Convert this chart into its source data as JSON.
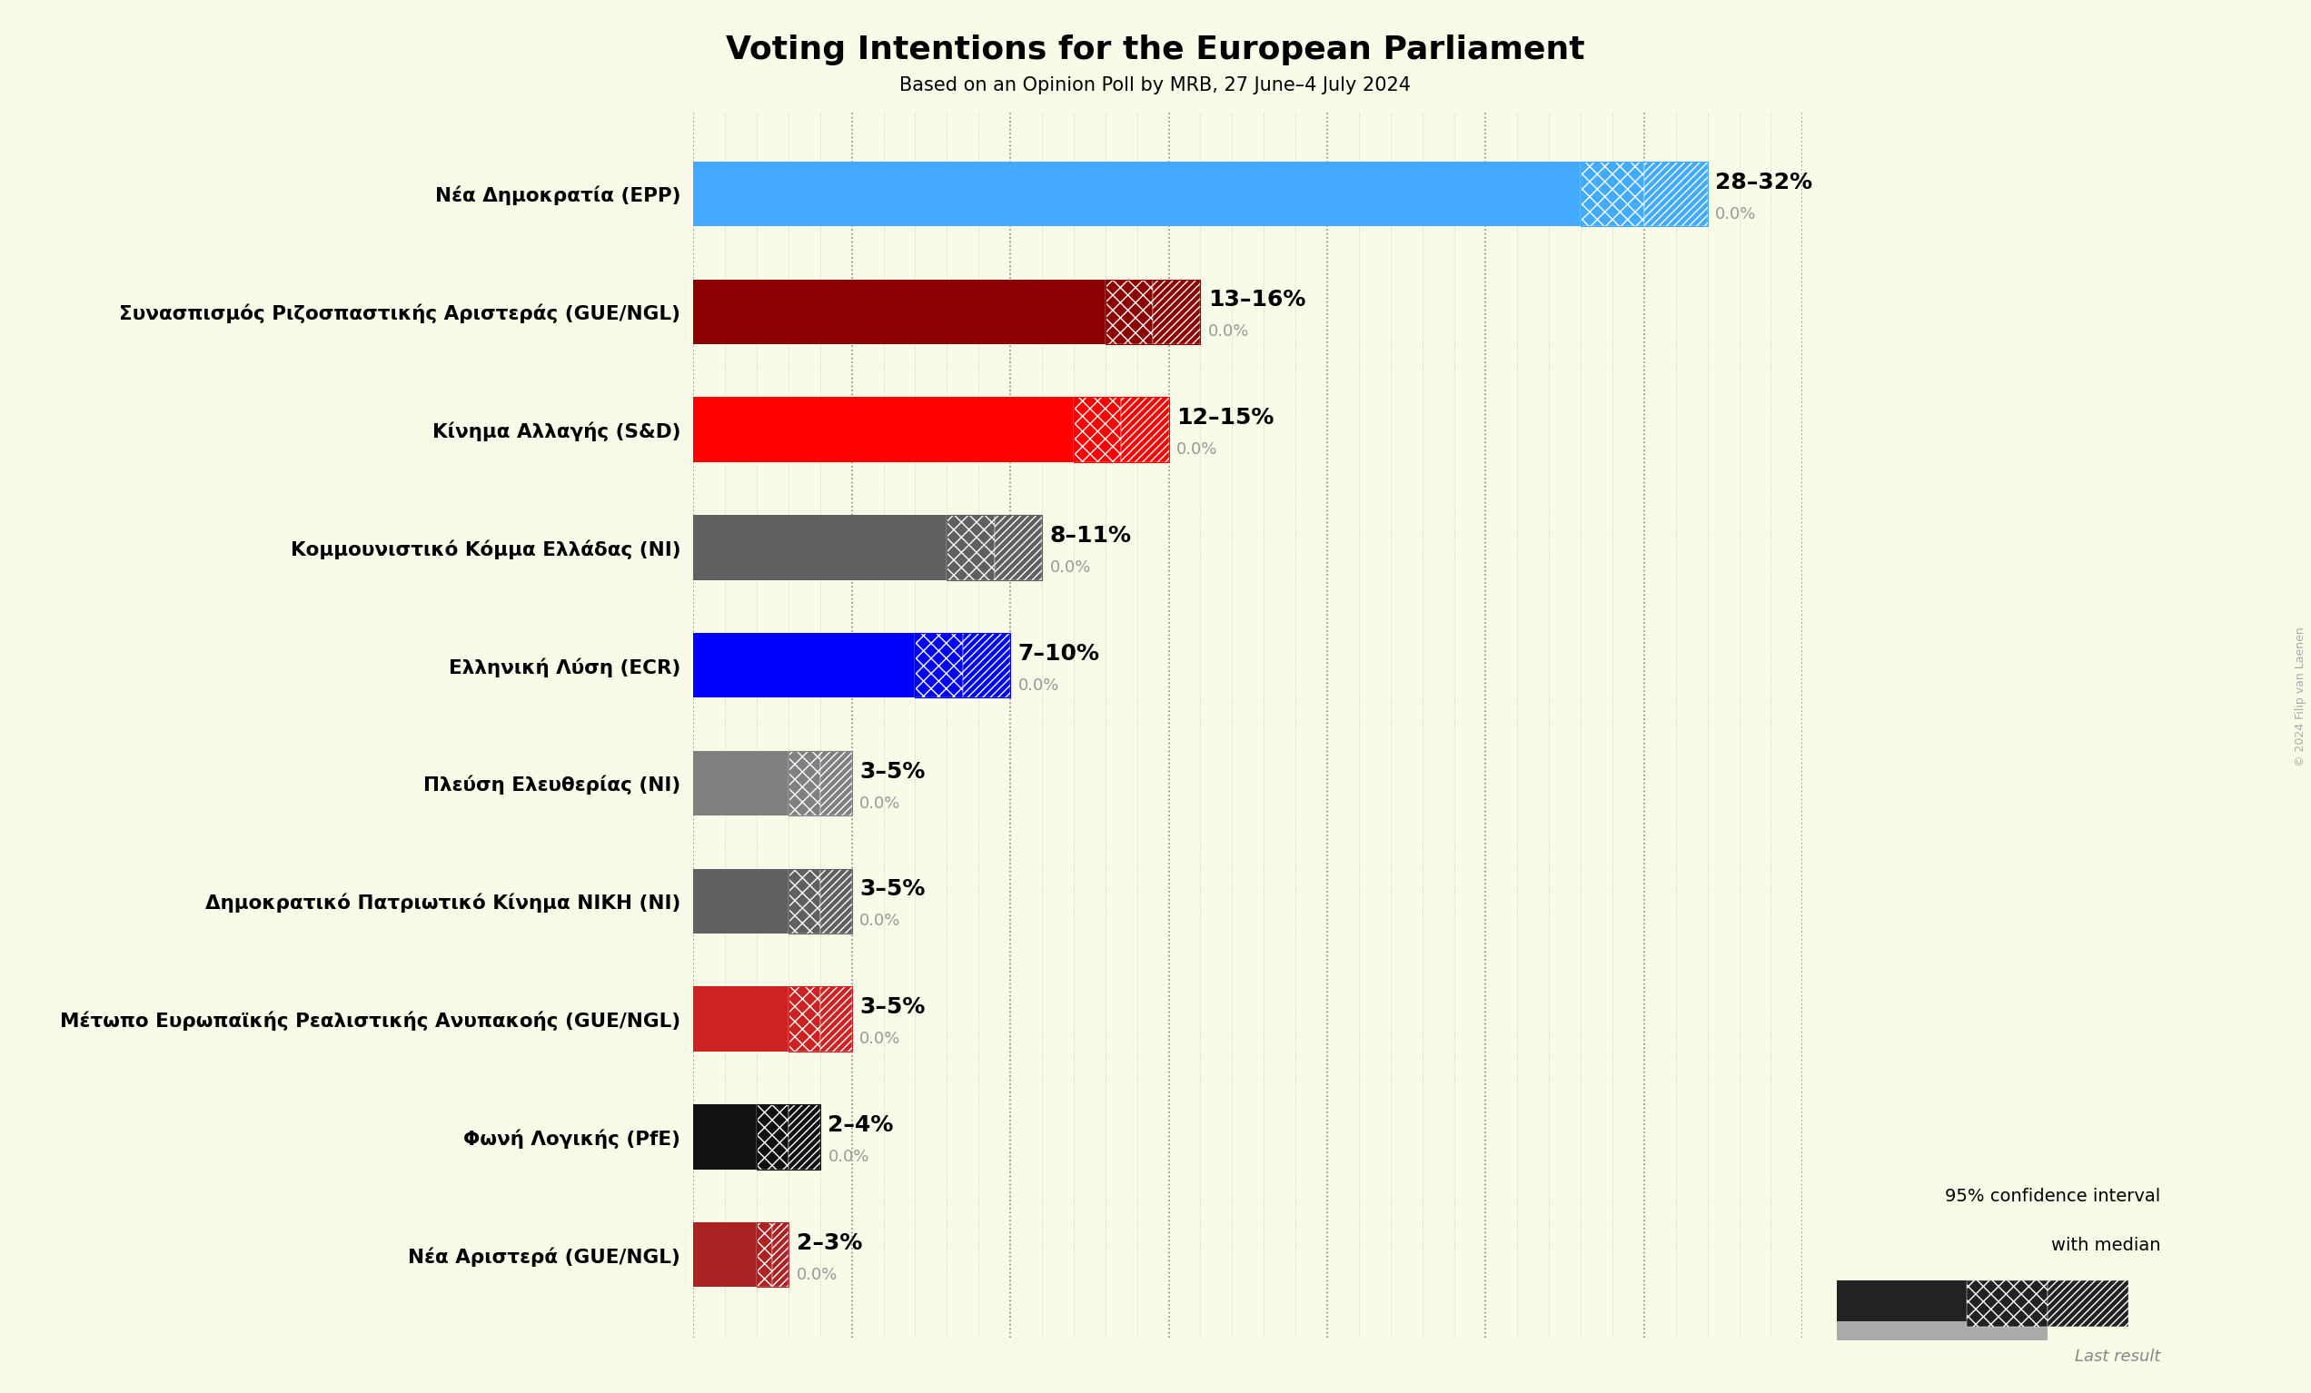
{
  "title": "Voting Intentions for the European Parliament",
  "subtitle": "Based on an Opinion Poll by MRB, 27 June–4 July 2024",
  "background_color": "#FAFAE8",
  "parties": [
    "Nέα Δημοκρατία (EPP)",
    "Συνασπισμός Ριζοσπαστικής Αριστεράς (GUE/NGL)",
    "Κίνημα Αλλαγής (S&D)",
    "Κομμουνιστικό Κόμμα Ελλάδας (ΝI)",
    "Ελληνική Λύση (ECR)",
    "Πλεύση Ελευθερίας (ΝI)",
    "Δημοκρατικό Πατριωτικό Κίνημα ΝΙΚΗ (ΝI)",
    "Μέτωπο Ευρωπαϊκής Ρεαλιστικής Ανυπακοής (GUE/NGL)",
    "Φωνή Λογικής (PfE)",
    "Νέα Αριστερά (GUE/NGL)"
  ],
  "median_values": [
    28,
    13,
    12,
    8,
    7,
    3,
    3,
    3,
    2,
    2
  ],
  "high_values": [
    32,
    16,
    15,
    11,
    10,
    5,
    5,
    5,
    4,
    3
  ],
  "bar_colors": [
    "#42AAFF",
    "#8B0000",
    "#FF0000",
    "#606060",
    "#0000FF",
    "#808080",
    "#606060",
    "#CC2222",
    "#111111",
    "#AA2222"
  ],
  "labels": [
    "28–32%",
    "13–16%",
    "12–15%",
    "8–11%",
    "7–10%",
    "3–5%",
    "3–5%",
    "3–5%",
    "2–4%",
    "2–3%"
  ],
  "last_result_values": [
    0.0,
    0.0,
    0.0,
    0.0,
    0.0,
    0.0,
    0.0,
    0.0,
    0.0,
    0.0
  ],
  "xlim": [
    0,
    35
  ],
  "grid_ticks": [
    0,
    5,
    10,
    15,
    20,
    25,
    30,
    35
  ],
  "legend_text_line1": "95% confidence interval",
  "legend_text_line2": "with median",
  "legend_last_result": "Last result",
  "copyright_text": "© 2024 Filip van Laenen"
}
